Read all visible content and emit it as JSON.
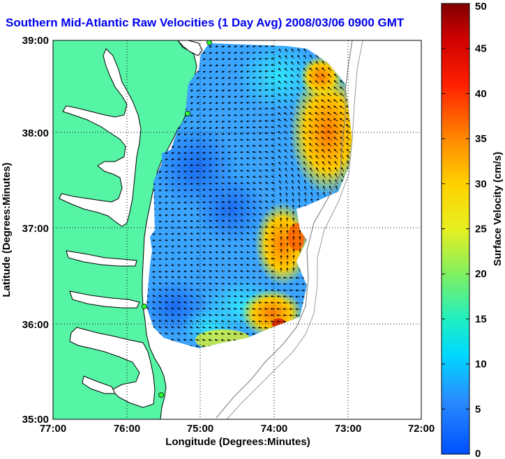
{
  "title": "Southern Mid-Atlantic Raw Velocities (1 Day Avg) 2008/03/06 0900 GMT",
  "xlabel": "Longitude (Degrees:Minutes)",
  "ylabel": "Latitude (Degrees:Minutes)",
  "colorbar_label": "Surface Velocity (cm/s)",
  "x_ticks": [
    "77:00",
    "76:00",
    "75:00",
    "74:00",
    "73:00",
    "72:00"
  ],
  "y_ticks": [
    "39:00",
    "38:00",
    "37:00",
    "36:00",
    "35:00"
  ],
  "colorbar_ticks": [
    "0",
    "5",
    "10",
    "15",
    "20",
    "25",
    "30",
    "35",
    "40",
    "45",
    "50"
  ],
  "colors": {
    "land": "#55f5a5",
    "water": "#ffffff",
    "title": "#0000ee"
  }
}
